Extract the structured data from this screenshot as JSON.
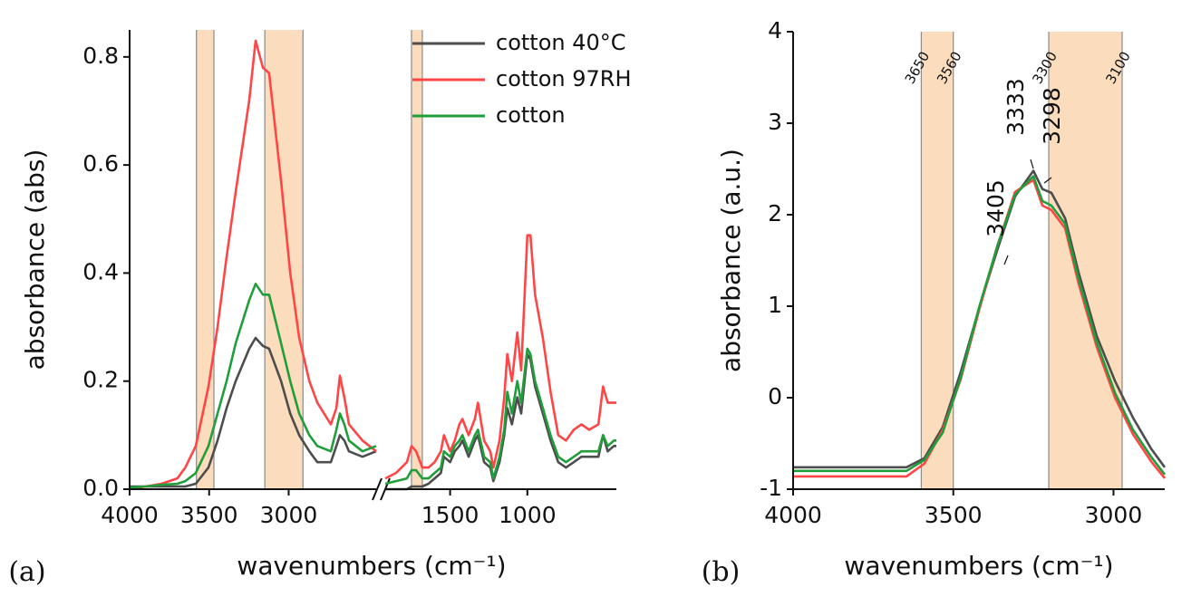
{
  "chart_data": [
    {
      "type": "line",
      "panel_label": "(a)",
      "x_label": "wavenumbers (cm⁻¹)",
      "y_label": "absorbance (abs)",
      "x": [
        4000,
        3900,
        3800,
        3700,
        3650,
        3584,
        3504,
        3447,
        3390,
        3333,
        3248,
        3208,
        3162,
        3123,
        3048,
        2990,
        2934,
        2870,
        2820,
        2735,
        2700,
        2678,
        2650,
        2621,
        2536,
        2450,
        1920,
        1850,
        1780,
        1750,
        1720,
        1680,
        1640,
        1600,
        1560,
        1540,
        1500,
        1470,
        1440,
        1420,
        1380,
        1340,
        1320,
        1280,
        1240,
        1220,
        1180,
        1150,
        1130,
        1100,
        1065,
        1040,
        1000,
        980,
        950,
        900,
        850,
        800,
        750,
        700,
        650,
        600,
        540,
        510,
        480,
        440,
        424
      ],
      "xlim": [
        4000,
        424
      ],
      "x_break": [
        2450,
        1920
      ],
      "xticks": [
        4000,
        3500,
        3000,
        1500,
        1000
      ],
      "ylim": [
        0,
        0.85
      ],
      "yticks": [
        {
          "value": 0,
          "label": "0.0"
        },
        0.2,
        0.4,
        0.6,
        0.8
      ],
      "bands": [
        [
          3580,
          3470
        ],
        [
          3150,
          2910
        ],
        [
          1750,
          1680
        ]
      ],
      "legend": "upper center",
      "series": [
        {
          "name": "cotton 40°C",
          "color": "#4d4d4d",
          "values": [
            0.005,
            0.005,
            0.005,
            0.005,
            0.005,
            0.01,
            0.04,
            0.09,
            0.15,
            0.2,
            0.26,
            0.28,
            0.265,
            0.26,
            0.2,
            0.14,
            0.1,
            0.07,
            0.05,
            0.05,
            0.08,
            0.1,
            0.09,
            0.07,
            0.06,
            0.07,
            0.0,
            0.0,
            0.0,
            0.005,
            0.005,
            0.005,
            0.01,
            0.02,
            0.03,
            0.06,
            0.05,
            0.07,
            0.08,
            0.09,
            0.06,
            0.09,
            0.1,
            0.05,
            0.04,
            0.015,
            0.05,
            0.1,
            0.15,
            0.12,
            0.17,
            0.14,
            0.25,
            0.24,
            0.19,
            0.14,
            0.09,
            0.05,
            0.04,
            0.05,
            0.06,
            0.06,
            0.06,
            0.1,
            0.07,
            0.08,
            0.08
          ]
        },
        {
          "name": "cotton 97RH",
          "color": "#ff4545",
          "values": [
            0,
            0.005,
            0.01,
            0.02,
            0.04,
            0.08,
            0.19,
            0.3,
            0.43,
            0.55,
            0.72,
            0.83,
            0.78,
            0.77,
            0.57,
            0.4,
            0.28,
            0.2,
            0.16,
            0.12,
            0.15,
            0.21,
            0.17,
            0.12,
            0.09,
            0.07,
            0.02,
            0.03,
            0.05,
            0.08,
            0.07,
            0.04,
            0.04,
            0.05,
            0.07,
            0.1,
            0.07,
            0.09,
            0.12,
            0.13,
            0.1,
            0.13,
            0.16,
            0.09,
            0.07,
            0.04,
            0.09,
            0.17,
            0.25,
            0.2,
            0.29,
            0.22,
            0.47,
            0.47,
            0.36,
            0.28,
            0.18,
            0.1,
            0.09,
            0.11,
            0.12,
            0.11,
            0.12,
            0.19,
            0.16,
            0.16,
            0.16
          ]
        },
        {
          "name": "cotton",
          "color": "#1f9e3a",
          "values": [
            0.003,
            0.005,
            0.008,
            0.01,
            0.015,
            0.03,
            0.08,
            0.14,
            0.2,
            0.27,
            0.35,
            0.38,
            0.36,
            0.36,
            0.27,
            0.2,
            0.14,
            0.1,
            0.08,
            0.07,
            0.11,
            0.14,
            0.12,
            0.09,
            0.07,
            0.08,
            0.01,
            0.015,
            0.02,
            0.035,
            0.035,
            0.02,
            0.02,
            0.03,
            0.04,
            0.07,
            0.06,
            0.08,
            0.09,
            0.1,
            0.07,
            0.1,
            0.11,
            0.06,
            0.05,
            0.02,
            0.06,
            0.11,
            0.18,
            0.14,
            0.2,
            0.16,
            0.26,
            0.25,
            0.2,
            0.15,
            0.1,
            0.06,
            0.05,
            0.06,
            0.07,
            0.07,
            0.07,
            0.1,
            0.08,
            0.09,
            0.09
          ]
        }
      ]
    },
    {
      "type": "line",
      "panel_label": "(b)",
      "x_label": "wavenumbers (cm⁻¹)",
      "y_label": "absorbance (a.u.)",
      "x": [
        4000,
        3788,
        3646,
        3590,
        3533,
        3477,
        3420,
        3363,
        3307,
        3250,
        3222,
        3194,
        3151,
        3109,
        3052,
        2995,
        2939,
        2882,
        2840
      ],
      "xlim": [
        4000,
        2840
      ],
      "xticks": [
        4000,
        3500,
        3000
      ],
      "ylim": [
        -1,
        4
      ],
      "yticks": [
        -1,
        0,
        1,
        2,
        3,
        4
      ],
      "bands": [
        [
          3600,
          3500
        ],
        [
          3202,
          2973
        ]
      ],
      "band_labels": [
        "3650",
        "3560",
        "3300",
        "3100"
      ],
      "annotations": [
        "3405",
        "3333",
        "3298"
      ],
      "series": [
        {
          "name": "cotton 40°C",
          "color": "#4d4d4d",
          "values": [
            -0.76,
            -0.76,
            -0.76,
            -0.66,
            -0.32,
            0.28,
            0.97,
            1.61,
            2.2,
            2.48,
            2.28,
            2.24,
            1.96,
            1.37,
            0.67,
            0.18,
            -0.22,
            -0.56,
            -0.76
          ]
        },
        {
          "name": "cotton 97RH",
          "color": "#ff4545",
          "values": [
            -0.86,
            -0.86,
            -0.86,
            -0.72,
            -0.35,
            0.2,
            0.95,
            1.65,
            2.25,
            2.38,
            2.1,
            2.05,
            1.85,
            1.25,
            0.55,
            0.0,
            -0.4,
            -0.7,
            -0.88
          ]
        },
        {
          "name": "cotton",
          "color": "#1f9e3a",
          "values": [
            -0.8,
            -0.8,
            -0.8,
            -0.68,
            -0.38,
            0.22,
            0.98,
            1.65,
            2.22,
            2.42,
            2.15,
            2.1,
            1.9,
            1.3,
            0.6,
            0.05,
            -0.35,
            -0.65,
            -0.84
          ]
        }
      ]
    }
  ]
}
